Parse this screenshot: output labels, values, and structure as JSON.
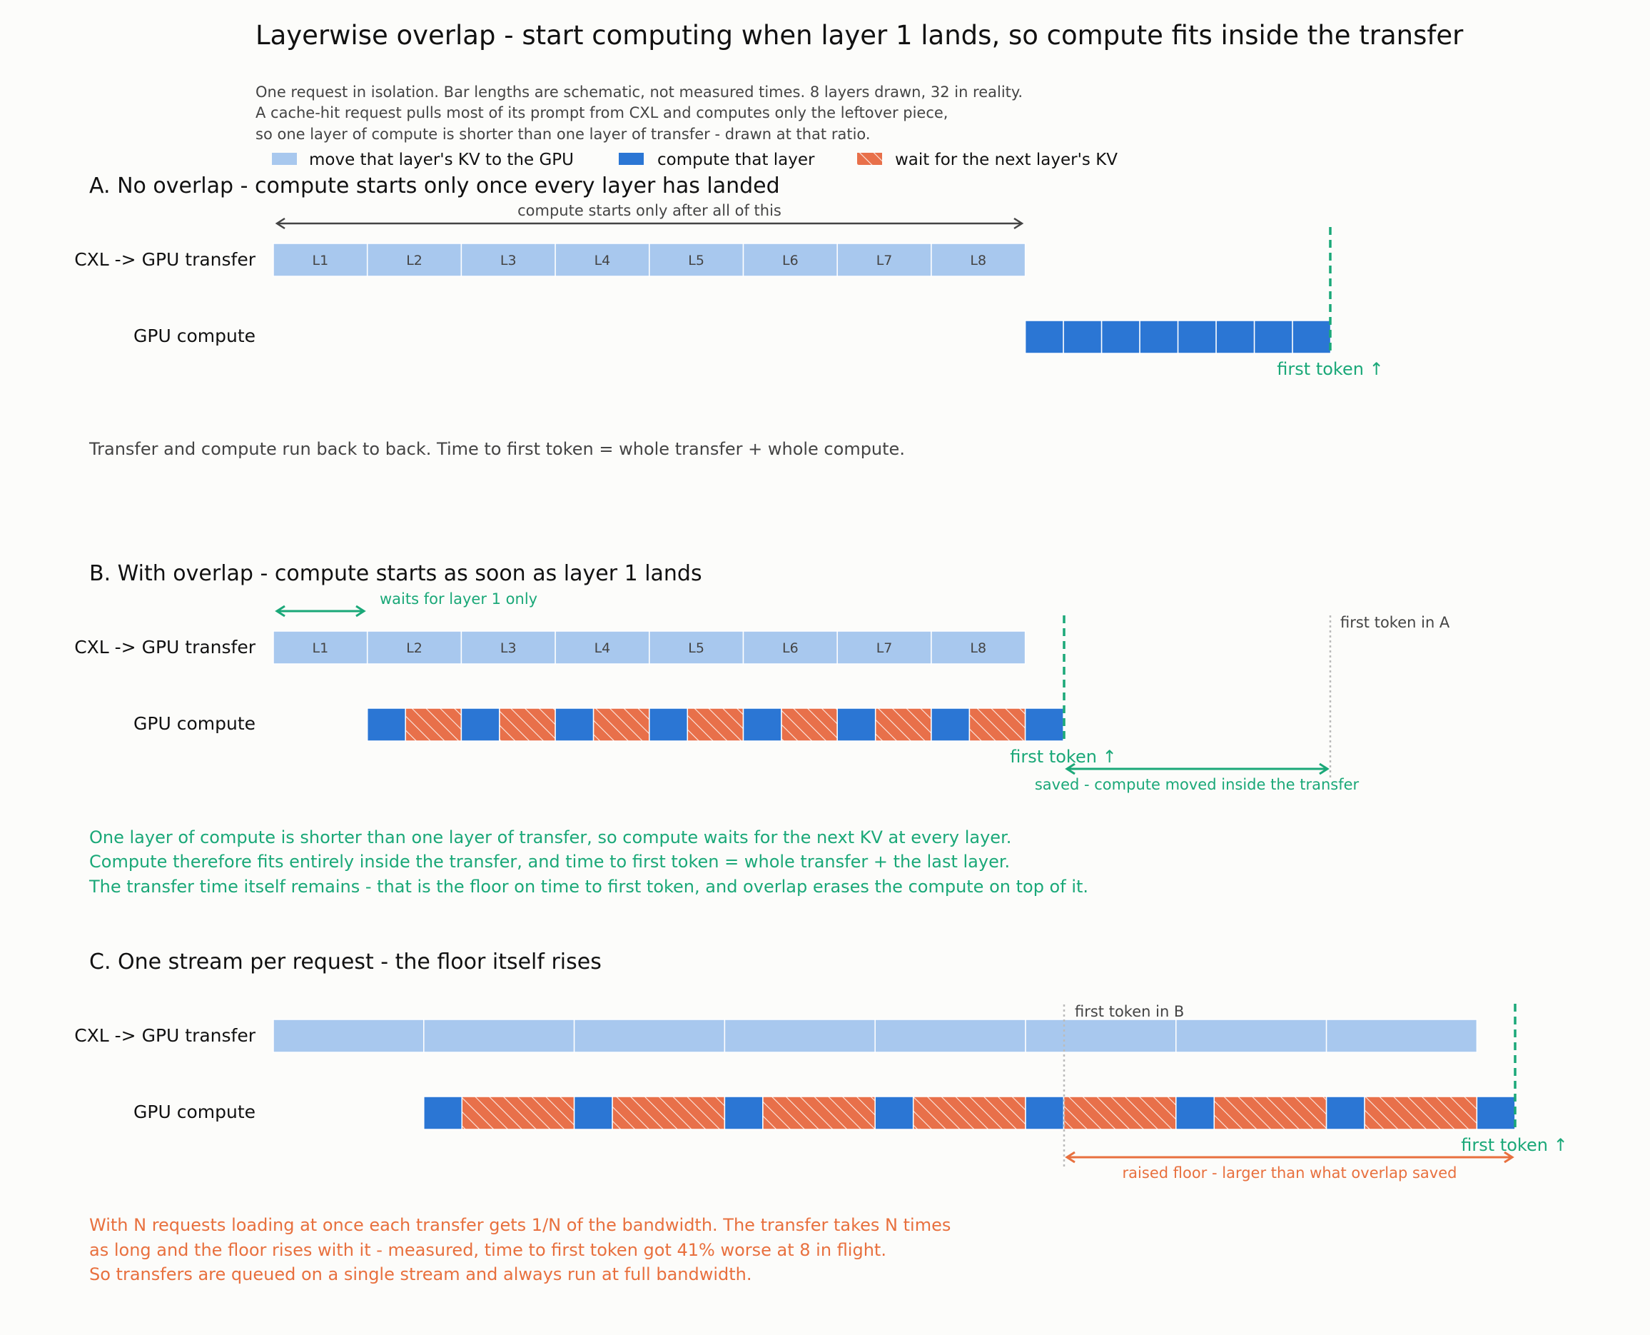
{
  "title": "Layerwise overlap - start computing when layer 1 lands, so compute fits inside the transfer",
  "subtitle": [
    "One request in isolation. Bar lengths are schematic, not measured times. 8 layers drawn, 32 in reality.",
    "A cache-hit request pulls most of its prompt from CXL and computes only the leftover piece,",
    "so one layer of compute is shorter than one layer of transfer - drawn at that ratio."
  ],
  "legend": {
    "transfer": "move that layer's KV to the GPU",
    "compute": "compute that layer",
    "wait": "wait for the next layer's KV"
  },
  "colors": {
    "transfer": "#a8c8ee",
    "compute": "#2b76d4",
    "wait": "#e8704a",
    "green": "#1aa878",
    "orange": "#e8703e",
    "gray": "#444444"
  },
  "rows": {
    "transfer": "CXL -> GPU transfer",
    "compute": "GPU compute"
  },
  "layer_labels": [
    "L1",
    "L2",
    "L3",
    "L4",
    "L5",
    "L6",
    "L7",
    "L8"
  ],
  "panels": {
    "a": {
      "heading": "A. No overlap - compute starts only once every layer has landed",
      "span_label": "compute starts only after all of this",
      "first_token": "first token ↑",
      "caption": [
        "Transfer and compute run back to back. Time to first token = whole transfer + whole compute."
      ]
    },
    "b": {
      "heading": "B. With overlap - compute starts as soon as layer 1 lands",
      "wait_label": "waits for layer 1 only",
      "ref_label": "first token in A",
      "first_token": "first token ↑",
      "saved_label": "saved - compute moved inside the transfer",
      "caption": [
        "One layer of compute is shorter than one layer of transfer, so compute waits for the next KV at every layer.",
        "Compute therefore fits entirely inside the transfer, and time to first token = whole transfer + the last layer.",
        "The transfer time itself remains - that is the floor on time to first token, and overlap erases the compute on top of it."
      ]
    },
    "c": {
      "heading": "C. One stream per request - the floor itself rises",
      "ref_label": "first token in B",
      "first_token": "first token ↑",
      "raised_label": "raised floor - larger than what overlap saved",
      "caption": [
        "With N requests loading at once each transfer gets 1/N of the bandwidth. The transfer takes N times",
        "as long and the floor rises with it - measured, time to first token got 41% worse at 8 in flight.",
        "So transfers are queued on a single stream and always run at full bandwidth."
      ]
    }
  }
}
